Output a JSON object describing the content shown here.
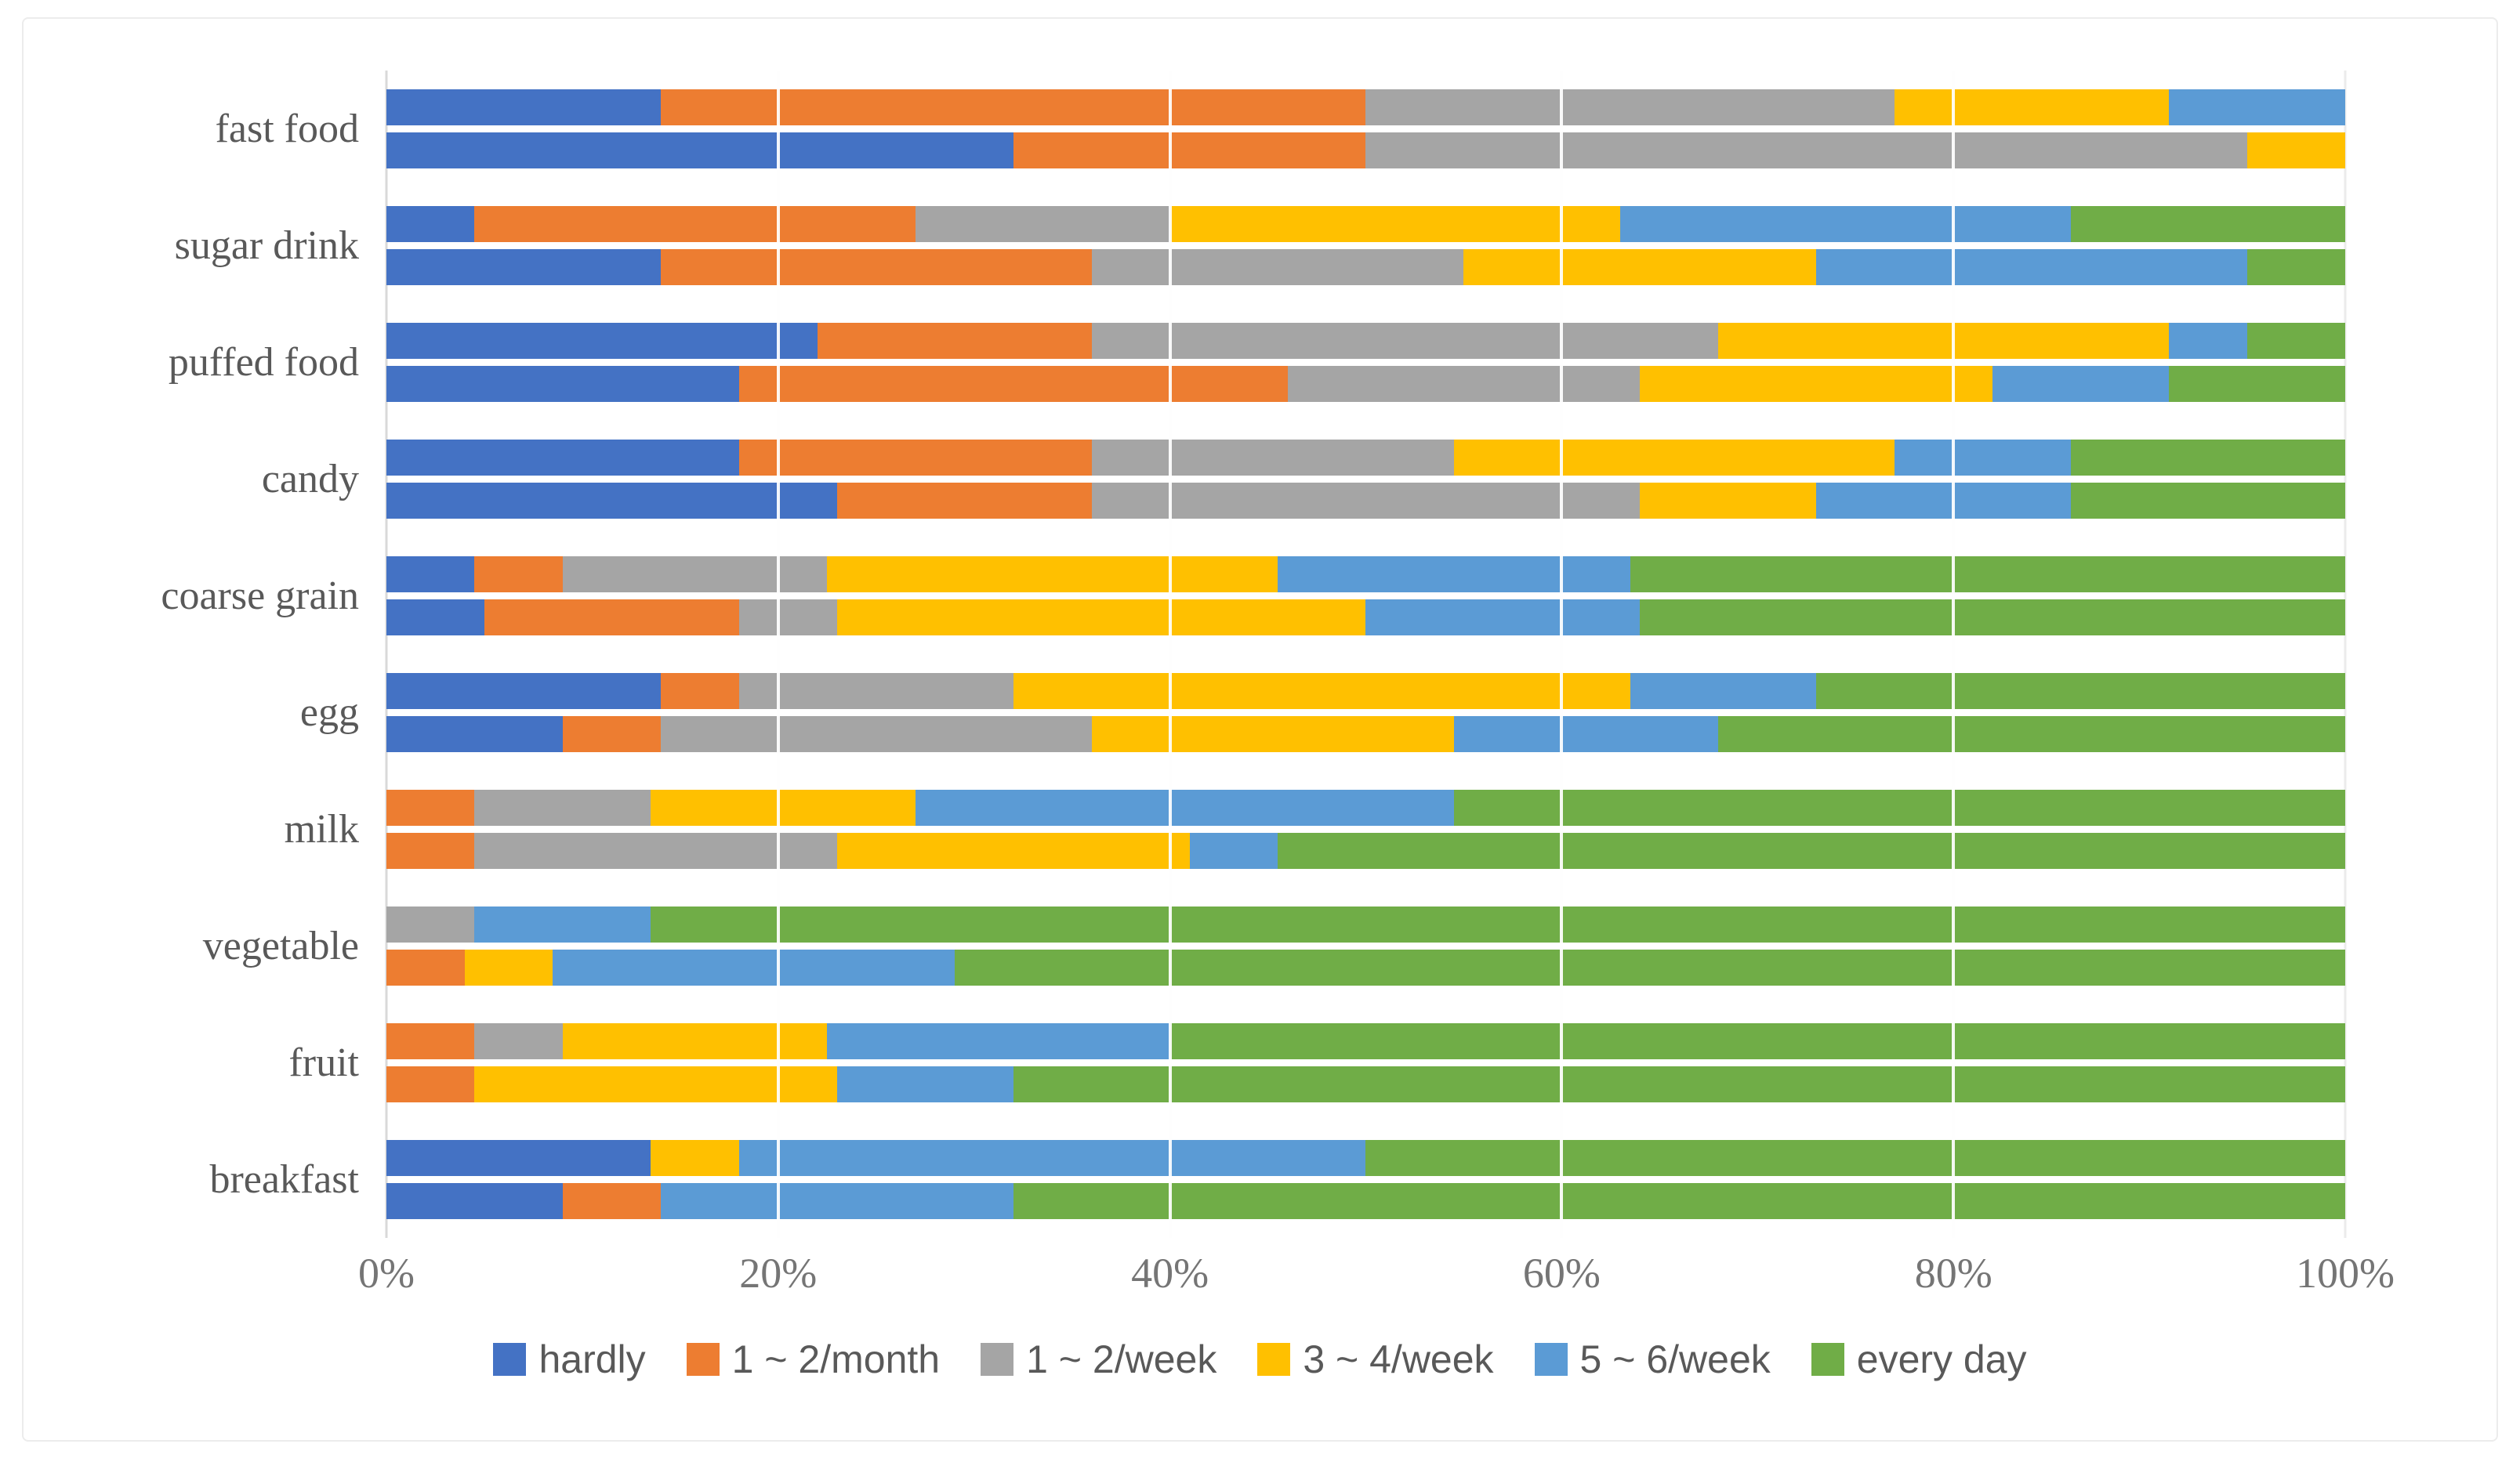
{
  "chart_data": {
    "type": "bar",
    "subtype": "100-percent-stacked-horizontal",
    "title": "",
    "xlabel": "",
    "ylabel": "",
    "xlim": [
      0,
      100
    ],
    "grid": true,
    "legend_position": "bottom",
    "bars_per_category": 2,
    "categories": [
      "fast food",
      "sugar drink",
      "puffed food",
      "candy",
      "coarse grain",
      "egg",
      "milk",
      "vegetable",
      "fruit",
      "breakfast"
    ],
    "series": [
      {
        "name": "hardly",
        "color": "#4472C4"
      },
      {
        "name": "1 ~ 2/month",
        "color": "#ED7D31"
      },
      {
        "name": "1 ~ 2/week",
        "color": "#A5A5A5"
      },
      {
        "name": "3 ~ 4/week",
        "color": "#FFC000"
      },
      {
        "name": "5 ~ 6/week",
        "color": "#5B9BD5"
      },
      {
        "name": "every day",
        "color": "#70AD47"
      }
    ],
    "values": [
      {
        "category": "fast food",
        "bars": [
          [
            14,
            36,
            27,
            14,
            9,
            0
          ],
          [
            32,
            18,
            45,
            5,
            0,
            0
          ]
        ]
      },
      {
        "category": "sugar drink",
        "bars": [
          [
            4.5,
            22.5,
            13,
            23,
            23,
            14
          ],
          [
            14,
            22,
            19,
            18,
            22,
            5
          ]
        ]
      },
      {
        "category": "puffed food",
        "bars": [
          [
            22,
            14,
            32,
            23,
            4,
            5
          ],
          [
            18,
            28,
            18,
            18,
            9,
            9
          ]
        ]
      },
      {
        "category": "candy",
        "bars": [
          [
            18,
            18,
            18.5,
            22.5,
            9,
            14
          ],
          [
            23,
            13,
            28,
            9,
            13,
            14
          ]
        ]
      },
      {
        "category": "coarse grain",
        "bars": [
          [
            4.5,
            4.5,
            13.5,
            23,
            18,
            36.5
          ],
          [
            5,
            13,
            5,
            27,
            14,
            36
          ]
        ]
      },
      {
        "category": "egg",
        "bars": [
          [
            14,
            4,
            14,
            31.5,
            9.5,
            27
          ],
          [
            9,
            5,
            22,
            18.5,
            13.5,
            32
          ]
        ]
      },
      {
        "category": "milk",
        "bars": [
          [
            0,
            4.5,
            9,
            13.5,
            27.5,
            45.5
          ],
          [
            0,
            4.5,
            18.5,
            18,
            4.5,
            54.5
          ]
        ]
      },
      {
        "category": "vegetable",
        "bars": [
          [
            0,
            0,
            4.5,
            0,
            9,
            86.5
          ],
          [
            0,
            4,
            0,
            4.5,
            20.5,
            71
          ]
        ]
      },
      {
        "category": "fruit",
        "bars": [
          [
            0,
            4.5,
            4.5,
            13.5,
            17.5,
            60
          ],
          [
            0,
            4.5,
            0,
            18.5,
            9,
            68
          ]
        ]
      },
      {
        "category": "breakfast",
        "bars": [
          [
            13.5,
            0,
            0,
            4.5,
            32,
            50
          ],
          [
            9,
            5,
            0,
            0,
            18,
            68
          ]
        ]
      }
    ],
    "xticks": {
      "labels": [
        "0%",
        "20%",
        "40%",
        "60%",
        "80%",
        "100%"
      ],
      "positions": [
        0,
        20,
        40,
        60,
        80,
        100
      ]
    },
    "colors": {
      "gridline": "#ebebeb",
      "axis_line": "#d9d9d9",
      "category_label_text": "#595959",
      "tick_label_text": "#757575",
      "legend_text": "#595959"
    }
  }
}
